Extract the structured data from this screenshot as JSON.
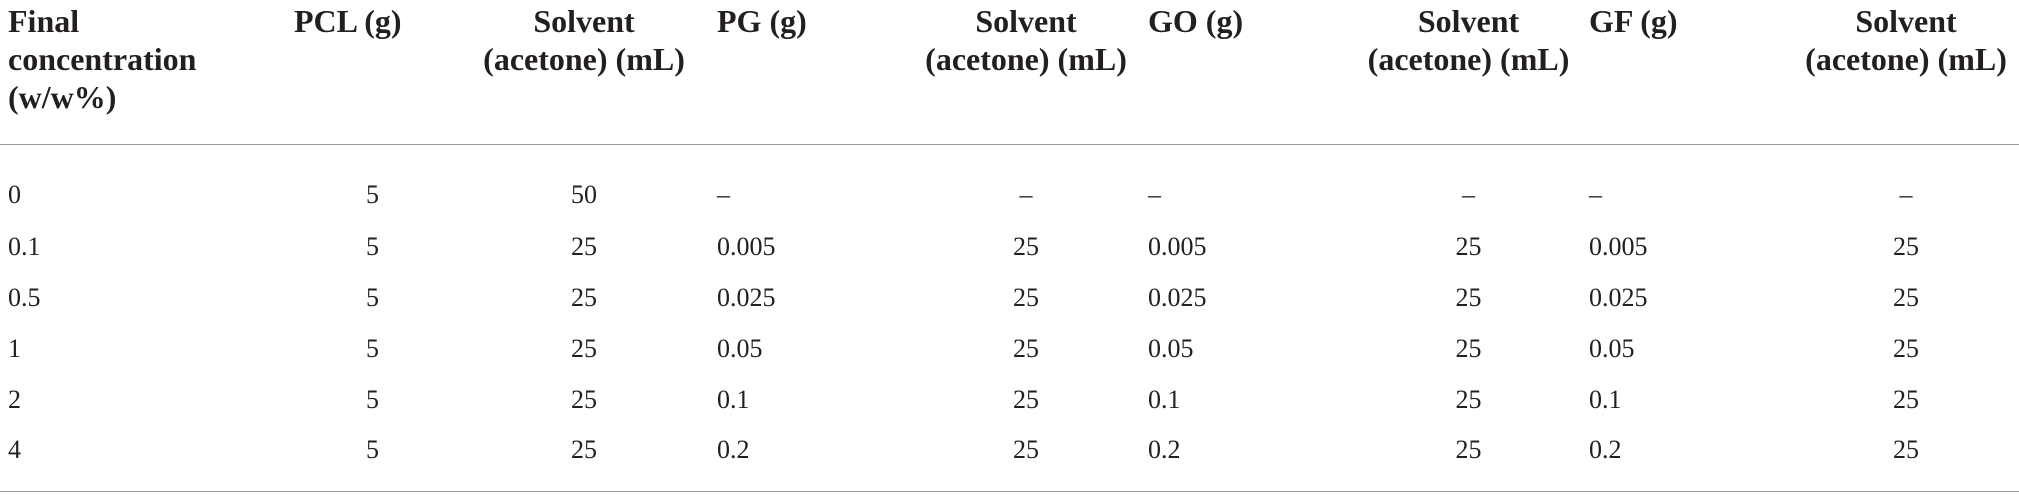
{
  "table": {
    "headers": [
      "Final concentration (w/w%)",
      "PCL (g)",
      "Solvent (acetone) (mL)",
      "PG (g)",
      "Solvent (acetone) (mL)",
      "GO (g)",
      "Solvent (acetone) (mL)",
      "GF (g)",
      "Solvent (acetone) (mL)"
    ],
    "header_lines": [
      [
        "Final",
        "concentration",
        "(w/w%)"
      ],
      [
        "PCL (g)"
      ],
      [
        "Solvent",
        "(acetone) (mL)"
      ],
      [
        "PG (g)"
      ],
      [
        "Solvent",
        "(acetone) (mL)"
      ],
      [
        "GO (g)"
      ],
      [
        "Solvent",
        "(acetone) (mL)"
      ],
      [
        "GF (g)"
      ],
      [
        "Solvent",
        "(acetone) (mL)"
      ]
    ],
    "rows": [
      [
        "0",
        "5",
        "50",
        "–",
        "–",
        "–",
        "–",
        "–",
        "–"
      ],
      [
        "0.1",
        "5",
        "25",
        "0.005",
        "25",
        "0.005",
        "25",
        "0.005",
        "25"
      ],
      [
        "0.5",
        "5",
        "25",
        "0.025",
        "25",
        "0.025",
        "25",
        "0.025",
        "25"
      ],
      [
        "1",
        "5",
        "25",
        "0.05",
        "25",
        "0.05",
        "25",
        "0.05",
        "25"
      ],
      [
        "2",
        "5",
        "25",
        "0.1",
        "25",
        "0.1",
        "25",
        "0.1",
        "25"
      ],
      [
        "4",
        "5",
        "25",
        "0.2",
        "25",
        "0.2",
        "25",
        "0.2",
        "25"
      ]
    ]
  }
}
